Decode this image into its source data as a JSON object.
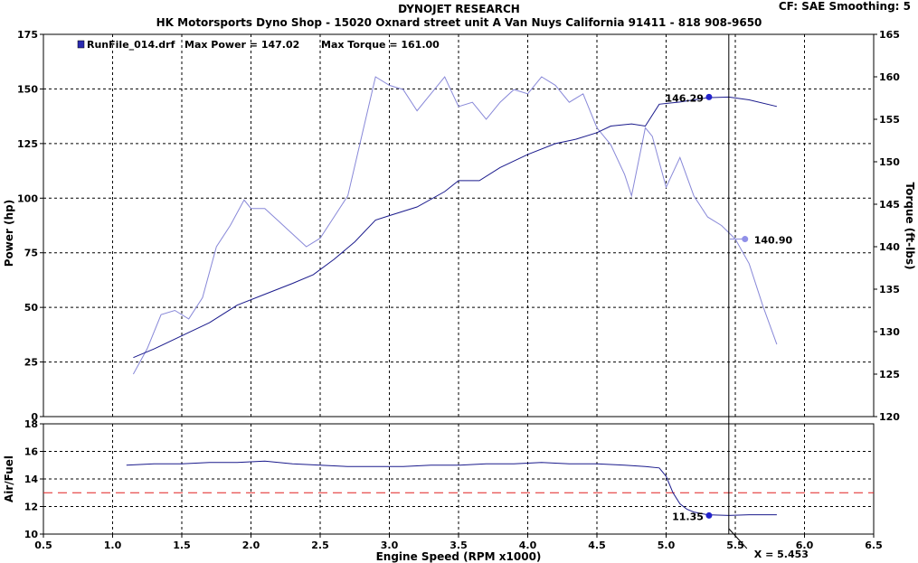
{
  "header": {
    "title": "DYNOJET RESEARCH",
    "subtitle": "HK Motorsports Dyno Shop - 15020 Oxnard street unit A Van Nuys California 91411 - 818 908-9650",
    "cf_info": "CF: SAE  Smoothing: 5"
  },
  "legend": {
    "run_file": "RunFile_014.drf",
    "max_power": "Max Power = 147.02",
    "max_torque": "Max Torque = 161.00"
  },
  "cursor": {
    "label": "X = 5.453",
    "x": 5.453,
    "power_value": "146.29",
    "torque_value": "140.90",
    "afr_value": "11.35"
  },
  "colors": {
    "power": "#1a1a8c",
    "torque": "#8888d8",
    "afr": "#1a1a8c",
    "reference": "#e02020",
    "grid": "#000000",
    "marker_power": "#2222cc",
    "marker_torque": "#9090e8"
  },
  "chart_data": [
    {
      "type": "line",
      "panel": "dyno",
      "xlabel": "Engine Speed (RPM x1000)",
      "ylabel": "Power (hp)",
      "y2label": "Torque (ft-lbs)",
      "xlim": [
        0.5,
        6.5
      ],
      "ylim": [
        0,
        175
      ],
      "y2lim": [
        120,
        165
      ],
      "xticks": [
        "0.5",
        "1.0",
        "1.5",
        "2.0",
        "2.5",
        "3.0",
        "3.5",
        "4.0",
        "4.5",
        "5.0",
        "5.5",
        "6.0",
        "6.5"
      ],
      "yticks": [
        "0",
        "25",
        "50",
        "75",
        "100",
        "125",
        "150",
        "175"
      ],
      "y2ticks": [
        "120",
        "125",
        "130",
        "135",
        "140",
        "145",
        "150",
        "155",
        "160",
        "165"
      ],
      "grid": true,
      "series": [
        {
          "name": "Power",
          "axis": "left",
          "x": [
            1.15,
            1.3,
            1.5,
            1.7,
            1.9,
            2.1,
            2.3,
            2.45,
            2.6,
            2.75,
            2.9,
            3.0,
            3.2,
            3.4,
            3.5,
            3.65,
            3.8,
            4.0,
            4.2,
            4.35,
            4.5,
            4.6,
            4.75,
            4.85,
            4.95,
            5.1,
            5.3,
            5.453,
            5.6,
            5.8
          ],
          "values": [
            27,
            31,
            37,
            43,
            51,
            56,
            61,
            65,
            72,
            80,
            90,
            92,
            96,
            103,
            108,
            108,
            114,
            120,
            125,
            127,
            130,
            133,
            134,
            133,
            143,
            144,
            146,
            146.29,
            145,
            142
          ]
        },
        {
          "name": "Torque",
          "axis": "right",
          "x": [
            1.15,
            1.25,
            1.35,
            1.45,
            1.55,
            1.65,
            1.75,
            1.85,
            1.95,
            2.0,
            2.1,
            2.2,
            2.3,
            2.4,
            2.5,
            2.6,
            2.7,
            2.8,
            2.9,
            3.0,
            3.1,
            3.2,
            3.3,
            3.4,
            3.5,
            3.6,
            3.7,
            3.8,
            3.9,
            4.0,
            4.1,
            4.2,
            4.3,
            4.4,
            4.5,
            4.6,
            4.7,
            4.75,
            4.8,
            4.85,
            4.9,
            5.0,
            5.1,
            5.2,
            5.3,
            5.4,
            5.5,
            5.6,
            5.7,
            5.8
          ],
          "values": [
            125,
            128,
            132,
            132.5,
            131.5,
            134,
            140,
            142.5,
            145.5,
            144.5,
            144.5,
            143,
            141.5,
            140,
            141,
            143.5,
            146,
            153,
            160,
            159,
            158.5,
            156,
            158,
            160,
            156.5,
            157,
            155,
            157,
            158.5,
            158,
            160,
            159,
            157,
            158,
            154,
            152,
            148.5,
            146,
            150,
            154,
            153,
            147,
            150.5,
            146,
            143.5,
            142.5,
            140.9,
            138,
            133,
            128.5
          ]
        }
      ]
    },
    {
      "type": "line",
      "panel": "air-fuel",
      "xlabel": "Engine Speed (RPM x1000)",
      "ylabel": "Air/Fuel",
      "xlim": [
        0.5,
        6.5
      ],
      "ylim": [
        10,
        18
      ],
      "yticks": [
        "10",
        "12",
        "14",
        "16",
        "18"
      ],
      "grid": true,
      "reference_line": 13,
      "series": [
        {
          "name": "Air/Fuel",
          "x": [
            1.1,
            1.3,
            1.5,
            1.7,
            1.9,
            2.1,
            2.3,
            2.5,
            2.7,
            2.9,
            3.1,
            3.3,
            3.5,
            3.7,
            3.9,
            4.1,
            4.3,
            4.5,
            4.7,
            4.85,
            4.95,
            5.0,
            5.05,
            5.1,
            5.15,
            5.2,
            5.3,
            5.453,
            5.6,
            5.8
          ],
          "values": [
            15,
            15.1,
            15.1,
            15.2,
            15.2,
            15.3,
            15.1,
            15,
            14.9,
            14.9,
            14.9,
            15,
            15,
            15.1,
            15.1,
            15.2,
            15.1,
            15.1,
            15,
            14.9,
            14.8,
            14.2,
            13,
            12.2,
            11.8,
            11.6,
            11.4,
            11.35,
            11.4,
            11.4
          ]
        }
      ]
    }
  ]
}
